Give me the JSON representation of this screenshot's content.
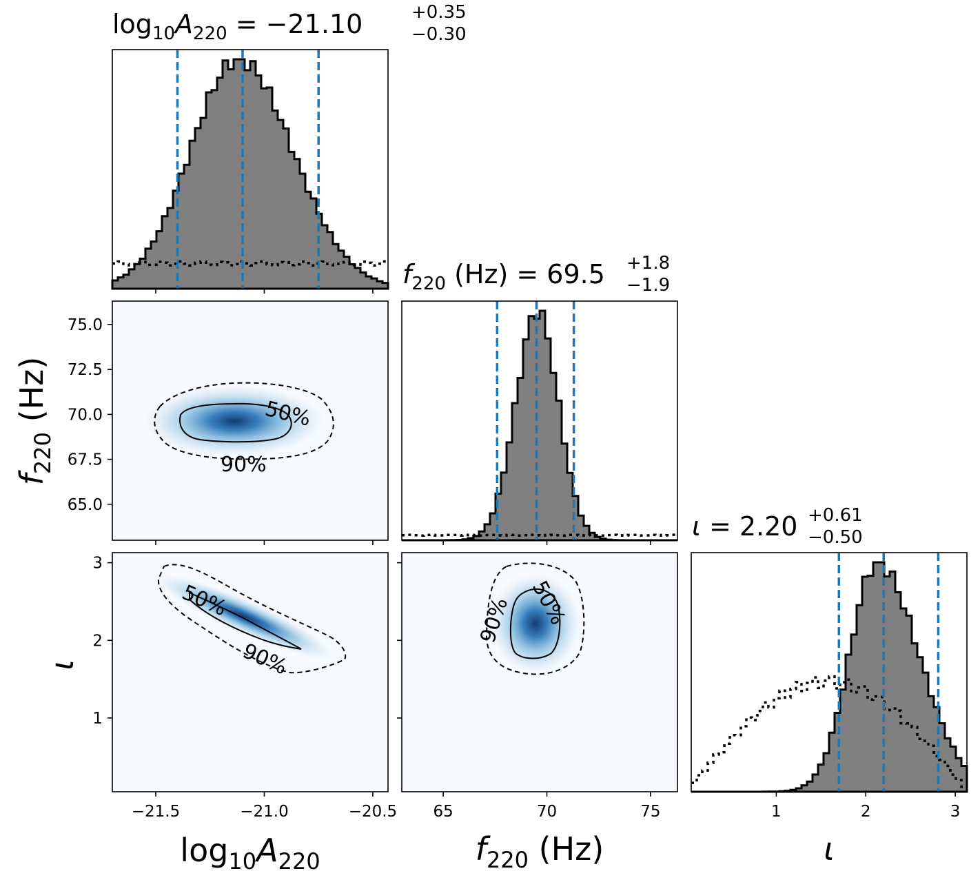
{
  "colors": {
    "hist_fill": "#808080",
    "hist_edge": "#000000",
    "quantile_line": "#1f77b4",
    "density_low": "#f7fbff",
    "density_high": "#08519c"
  },
  "titles": {
    "logA": {
      "base": "log",
      "sub": "10",
      "var": "A",
      "varsub": "220",
      "eq": " = −21.10",
      "up": "+0.35",
      "down": "−0.30"
    },
    "f": {
      "var": "f",
      "varsub": "220",
      "unit": " (Hz) = 69.5",
      "up": "+1.8",
      "down": "−1.9"
    },
    "iota": {
      "var": "ι",
      "eq": " = 2.20",
      "up": "+0.61",
      "down": "−0.50"
    }
  },
  "axis_labels": {
    "x_logA": {
      "base": "log",
      "sub": "10",
      "var": "A",
      "varsub": "220"
    },
    "x_f": {
      "var": "f",
      "varsub": "220",
      "unit": " (Hz)"
    },
    "x_iota": {
      "var": "ι"
    },
    "y_f": {
      "var": "f",
      "varsub": "220",
      "unit": " (Hz)"
    },
    "y_iota": {
      "var": "ι"
    }
  },
  "contour_labels": {
    "level50": "50%",
    "level90": "90%"
  },
  "chart_data": {
    "type": "corner",
    "parameters": [
      "log10A220",
      "f220 (Hz)",
      "iota"
    ],
    "ranges": {
      "logA": [
        -21.7,
        -20.43
      ],
      "f": [
        63.0,
        76.3
      ],
      "iota": [
        0.05,
        3.13
      ]
    },
    "ticks": {
      "logA": {
        "values": [
          -21.5,
          -21.0,
          -20.5
        ],
        "labels": [
          "−21.5",
          "−21.0",
          "−20.5"
        ]
      },
      "f_x": {
        "values": [
          65,
          70,
          75
        ],
        "labels": [
          "65",
          "70",
          "75"
        ]
      },
      "f_y": {
        "values": [
          65.0,
          67.5,
          70.0,
          72.5,
          75.0
        ],
        "labels": [
          "65.0",
          "67.5",
          "70.0",
          "72.5",
          "75.0"
        ]
      },
      "iota": {
        "values": [
          1,
          2,
          3
        ],
        "labels": [
          "1",
          "2",
          "3"
        ]
      }
    },
    "marginals": {
      "logA": {
        "median": -21.1,
        "lower": -21.4,
        "upper": -20.75,
        "center": -21.12,
        "sigma_left": 0.22,
        "sigma_right": 0.25,
        "prior_level": 0.11
      },
      "f": {
        "median": 69.5,
        "lower": 67.6,
        "upper": 71.3,
        "center": 69.55,
        "sigma_left": 1.05,
        "sigma_right": 1.0,
        "prior_level": 0.022
      },
      "iota": {
        "median": 2.2,
        "lower": 1.7,
        "upper": 2.81,
        "center": 2.12,
        "sigma_left": 0.3,
        "sigma_right": 0.47,
        "prior_peak": 1.6
      }
    },
    "joint": {
      "logA_f": {
        "center": [
          -21.14,
          69.6
        ],
        "sigma": [
          0.15,
          0.7
        ],
        "corr": -0.05
      },
      "logA_iota": {
        "center": [
          -21.05,
          2.15
        ],
        "sigma": [
          0.22,
          0.4
        ],
        "corr": -0.97
      },
      "f_iota": {
        "center": [
          69.5,
          2.2
        ],
        "sigma": [
          0.9,
          0.32
        ],
        "corr": 0.0
      }
    }
  }
}
